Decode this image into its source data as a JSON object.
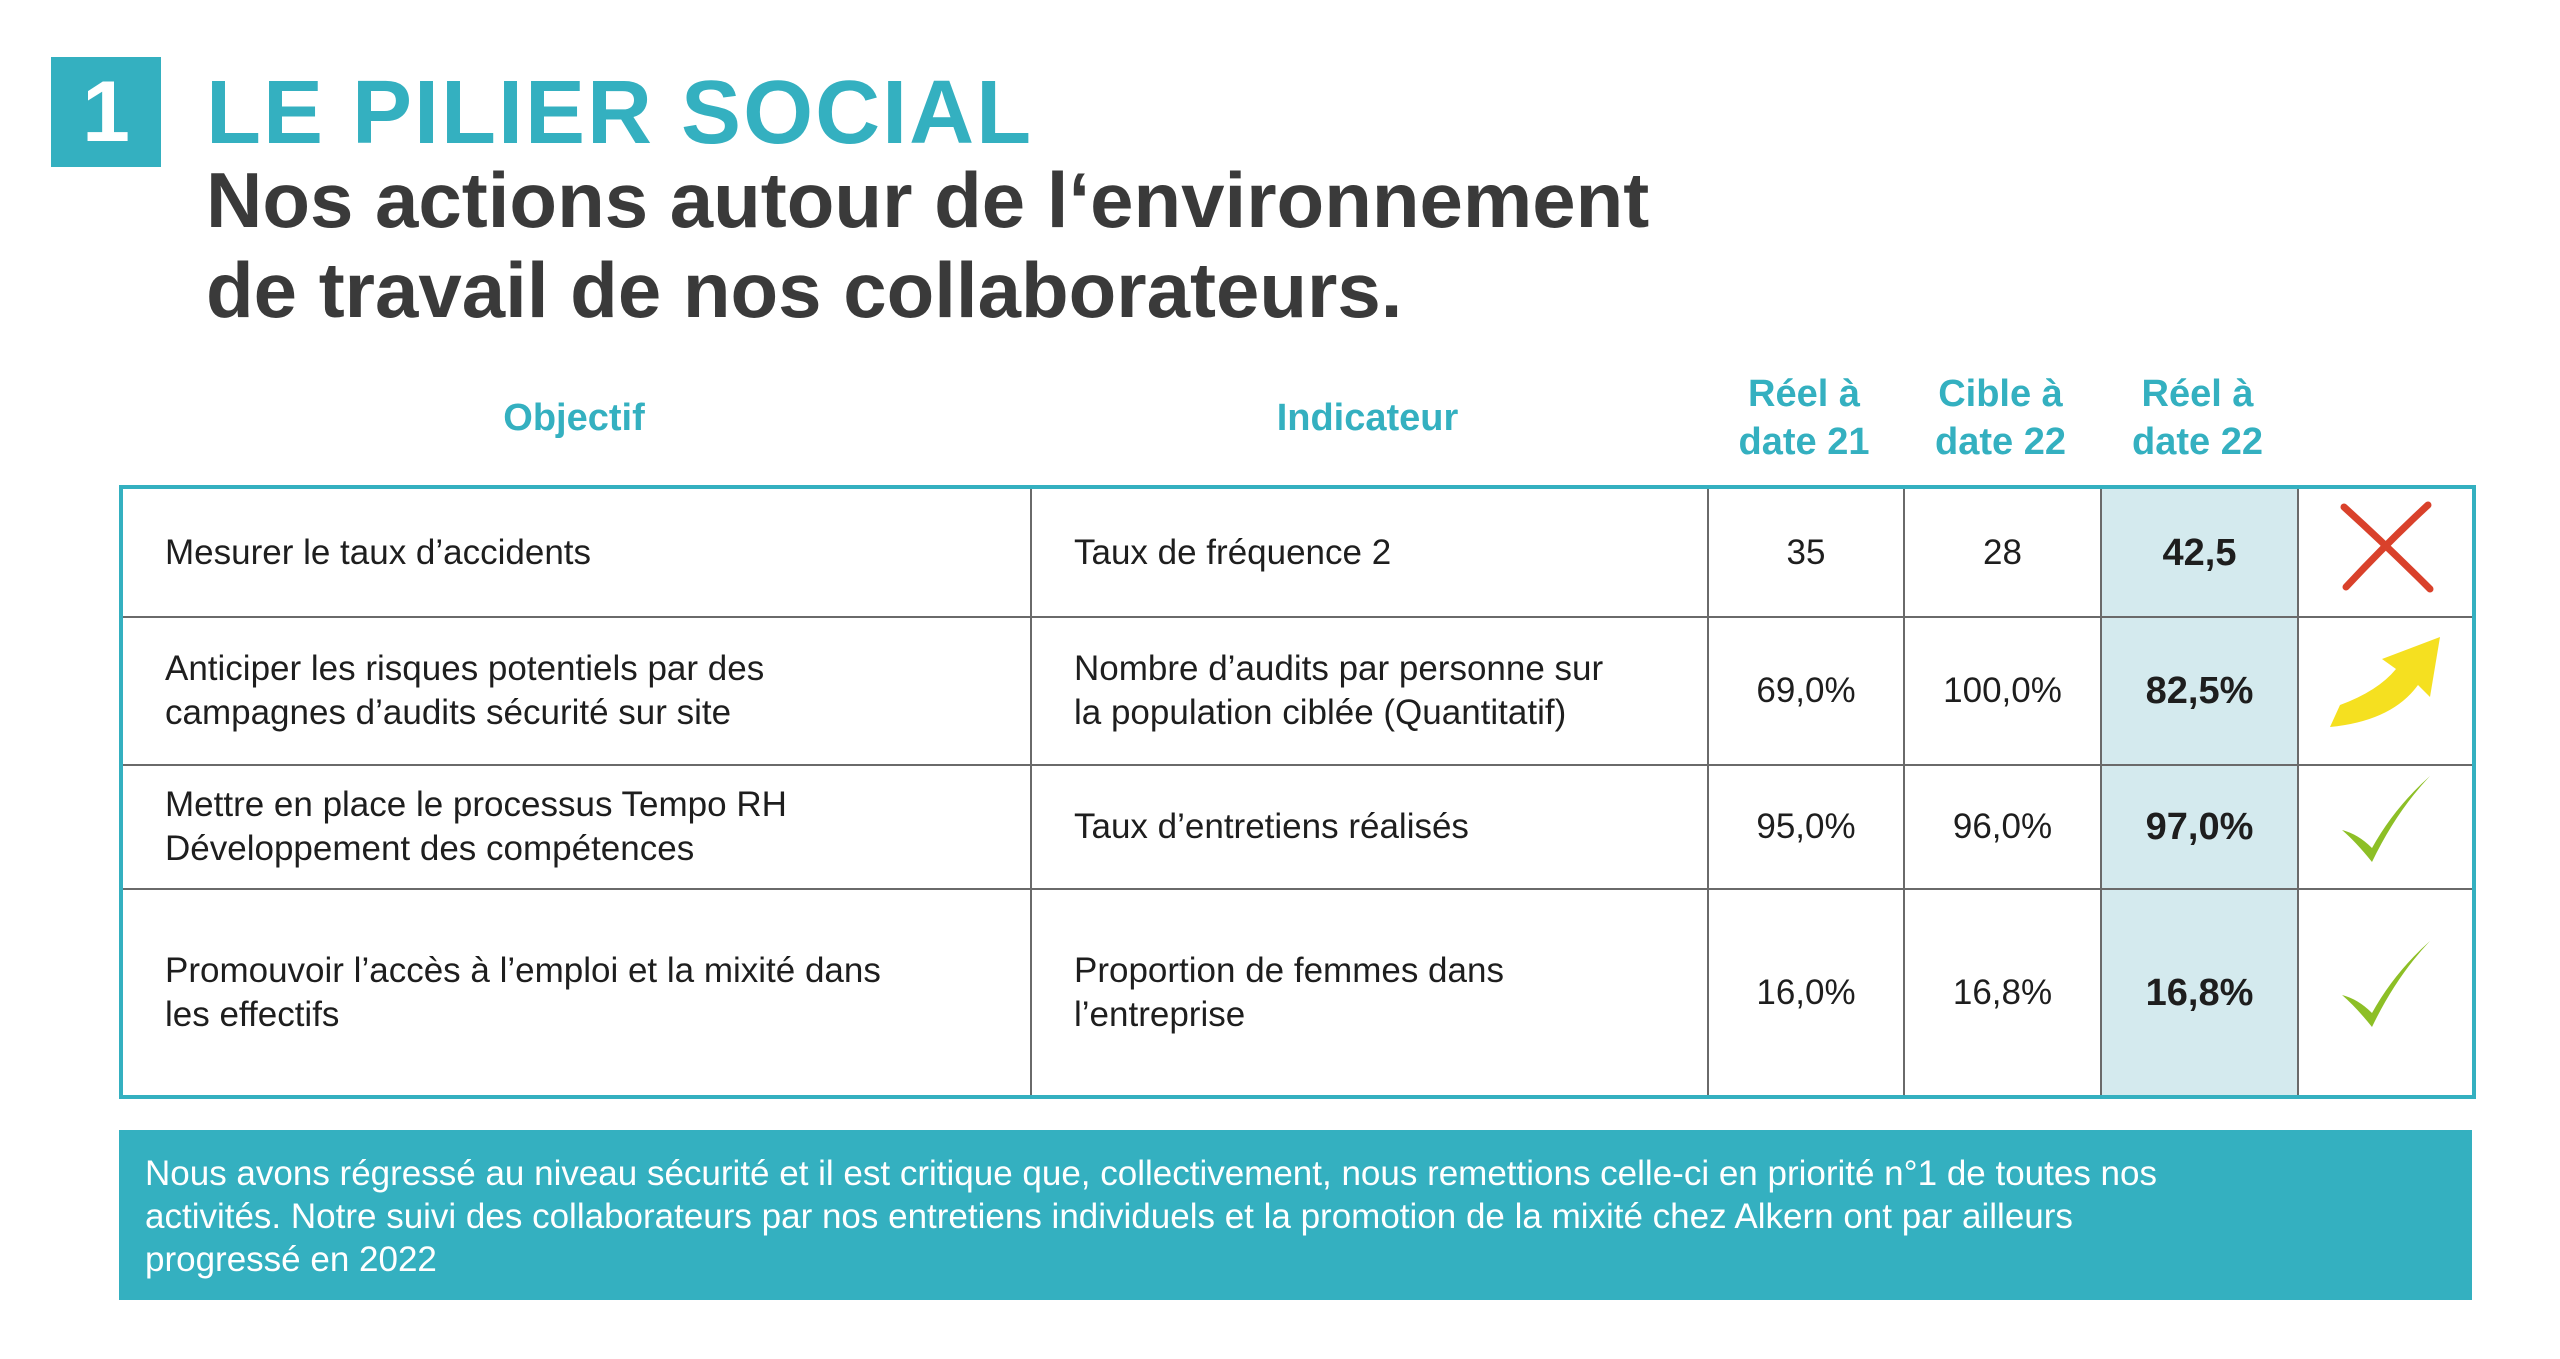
{
  "header": {
    "number": "1",
    "section_title": "LE PILIER SOCIAL",
    "subtitle_line1": "Nos actions autour de l‘environnement",
    "subtitle_line2": "de travail de nos collaborateurs."
  },
  "table": {
    "headers": {
      "objectif": "Objectif",
      "indicateur": "Indicateur",
      "reel21_line1": "Réel à",
      "reel21_line2": "date 21",
      "cible22_line1": "Cible à",
      "cible22_line2": "date 22",
      "reel22_line1": "Réel à",
      "reel22_line2": "date 22"
    },
    "rows": [
      {
        "objectif_1": "Mesurer le taux d’accidents",
        "objectif_2": "",
        "indicateur_1": "Taux de fréquence 2",
        "indicateur_2": "",
        "reel21": "35",
        "cible22": "28",
        "reel22": "42,5",
        "status_icon": "red-cross-icon"
      },
      {
        "objectif_1": "Anticiper les risques potentiels par des",
        "objectif_2": "campagnes d’audits sécurité sur site",
        "indicateur_1": "Nombre d’audits par personne sur",
        "indicateur_2": "la population ciblée (Quantitatif)",
        "reel21": "69,0%",
        "cible22": "100,0%",
        "reel22": "82,5%",
        "status_icon": "yellow-up-arrow-icon"
      },
      {
        "objectif_1": "Mettre en place le processus Tempo RH",
        "objectif_2": "Développement des compétences",
        "indicateur_1": "Taux d’entretiens réalisés",
        "indicateur_2": "",
        "reel21": "95,0%",
        "cible22": "96,0%",
        "reel22": "97,0%",
        "status_icon": "green-check-icon"
      },
      {
        "objectif_1": "Promouvoir l’accès à l’emploi et la mixité dans",
        "objectif_2": "les effectifs",
        "indicateur_1": "Proportion de femmes  dans",
        "indicateur_2": "l’entreprise",
        "reel21": "16,0%",
        "cible22": "16,8%",
        "reel22": "16,8%",
        "status_icon": "green-check-icon"
      }
    ]
  },
  "note": {
    "line1": "Nous avons régressé au niveau sécurité et il est critique que, collectivement, nous remettions celle-ci en priorité n°1 de toutes nos",
    "line2": "activités. Notre suivi des collaborateurs par nos entretiens individuels et la promotion de la mixité chez Alkern ont par ailleurs",
    "line3": "progressé en 2022"
  },
  "colors": {
    "accent": "#34b0c0",
    "highlight_column": "#d4eaee",
    "cross": "#d9412b",
    "arrow": "#f5e020",
    "check": "#8dbf26"
  }
}
